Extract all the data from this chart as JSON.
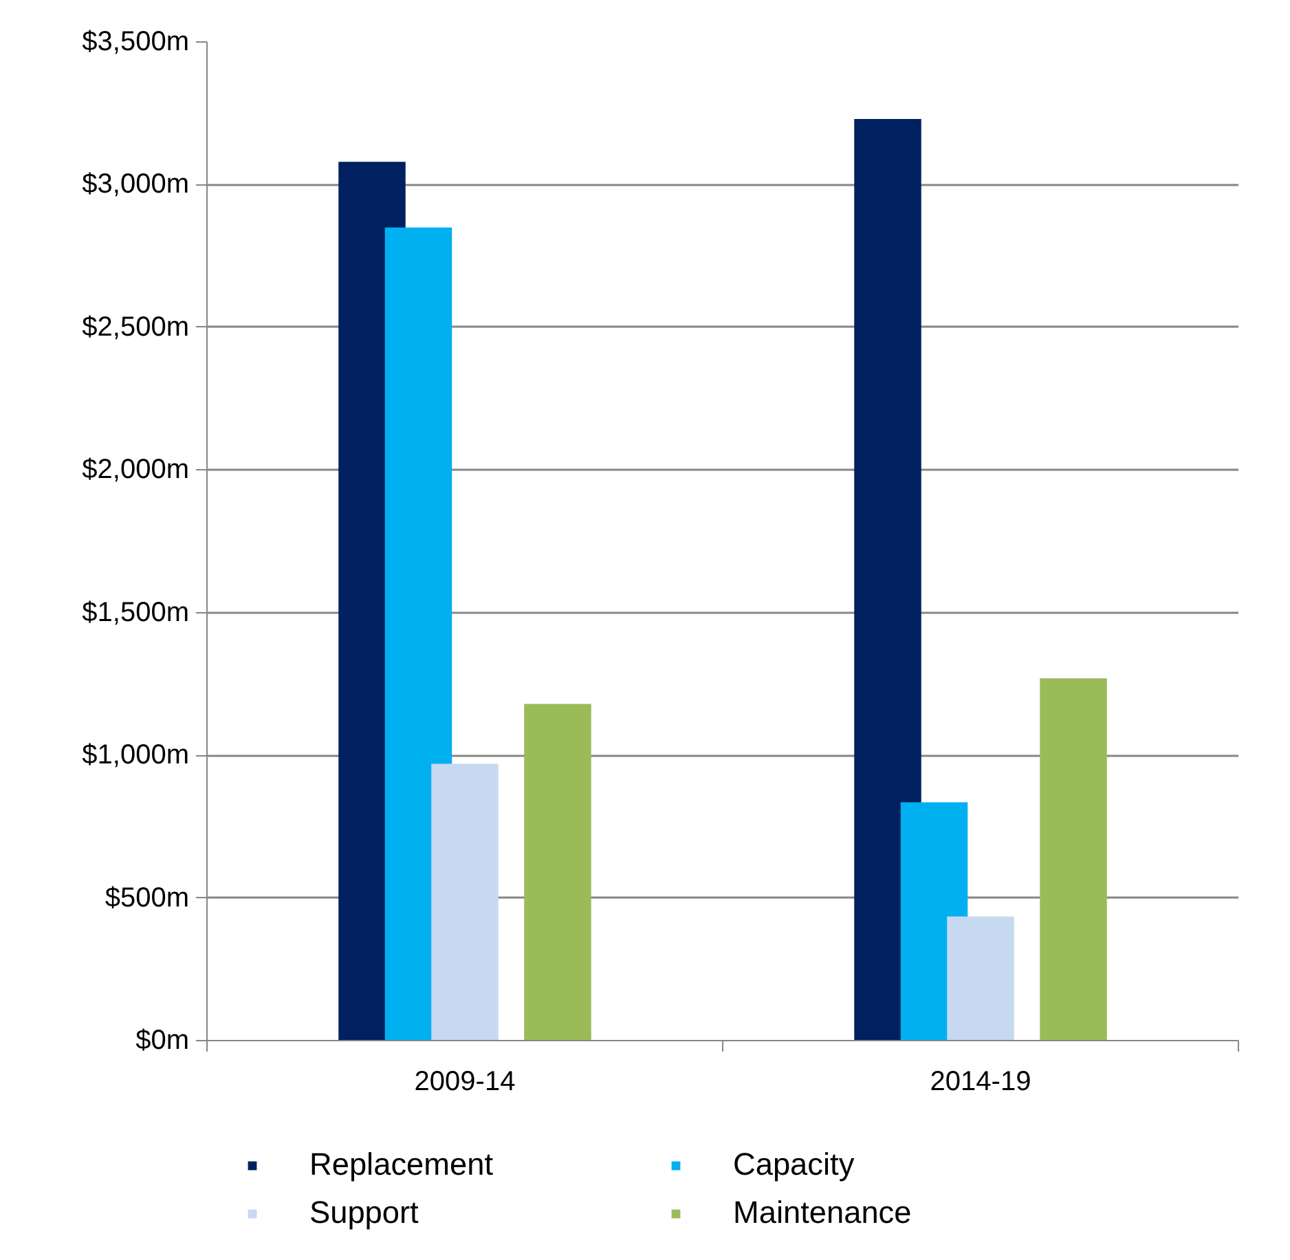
{
  "chart_data": {
    "type": "bar",
    "categories": [
      "2009-14",
      "2014-19"
    ],
    "series": [
      {
        "name": "Replacement",
        "color": "#002060",
        "values": [
          3080,
          3230
        ]
      },
      {
        "name": "Capacity",
        "color": "#00b0f0",
        "values": [
          2850,
          835
        ]
      },
      {
        "name": "Support",
        "color": "#c6d9f1",
        "values": [
          970,
          435
        ]
      },
      {
        "name": "Maintenance",
        "color": "#9bbb59",
        "values": [
          1180,
          1270
        ]
      }
    ],
    "ylim": [
      0,
      3500
    ],
    "yticks": [
      {
        "value": 0,
        "label": "$0m"
      },
      {
        "value": 500,
        "label": "$500m"
      },
      {
        "value": 1000,
        "label": "$1,000m"
      },
      {
        "value": 1500,
        "label": "$1,500m"
      },
      {
        "value": 2000,
        "label": "$2,000m"
      },
      {
        "value": 2500,
        "label": "$2,500m"
      },
      {
        "value": 3000,
        "label": "$3,000m"
      },
      {
        "value": 3500,
        "label": "$3,500m"
      }
    ],
    "grid": "y",
    "legend": "bottom"
  }
}
